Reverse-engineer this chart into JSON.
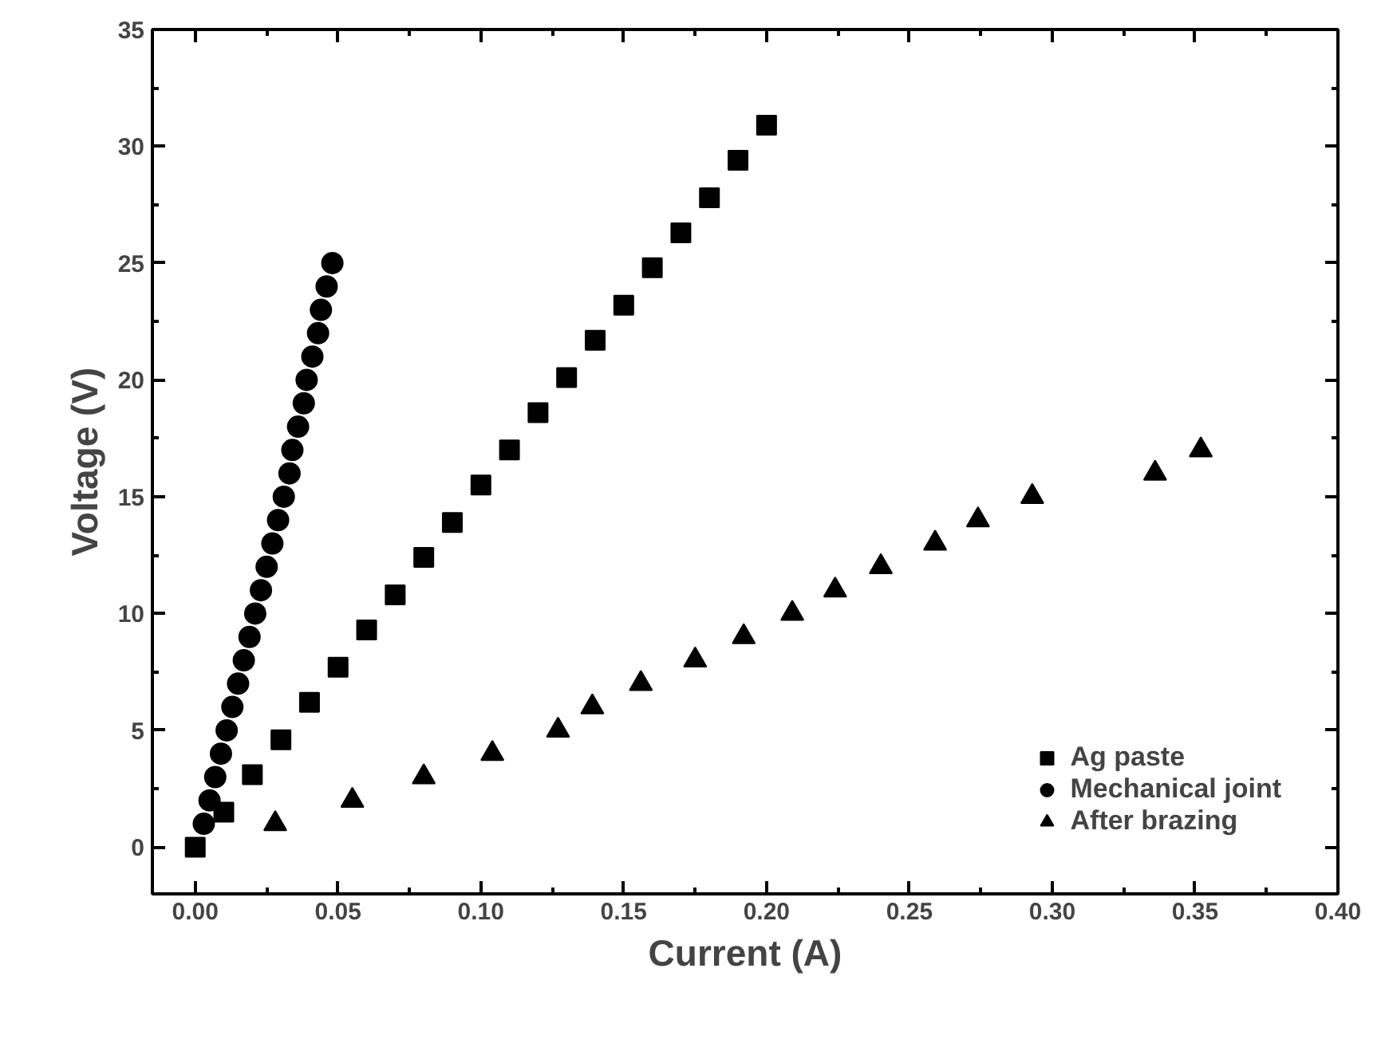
{
  "chart_data": {
    "type": "scatter",
    "xlabel": "Current (A)",
    "ylabel": "Voltage (V)",
    "xlim": [
      -0.015,
      0.4
    ],
    "ylim": [
      -2,
      35
    ],
    "xticks": [
      {
        "value": 0,
        "label": "0.00"
      },
      {
        "value": 0.05,
        "label": "0.05"
      },
      {
        "value": 0.1,
        "label": "0.10"
      },
      {
        "value": 0.15,
        "label": "0.15"
      },
      {
        "value": 0.2,
        "label": "0.20"
      },
      {
        "value": 0.25,
        "label": "0.25"
      },
      {
        "value": 0.3,
        "label": "0.30"
      },
      {
        "value": 0.35,
        "label": "0.35"
      },
      {
        "value": 0.4,
        "label": "0.40"
      }
    ],
    "yticks": [
      0,
      5,
      10,
      15,
      20,
      25,
      30,
      35
    ],
    "grid": false,
    "legend": "bottom right",
    "series": [
      {
        "name": "Ag paste",
        "color": "#000000",
        "marker": "square",
        "x": [
          0,
          0.01,
          0.02,
          0.03,
          0.04,
          0.05,
          0.06,
          0.07,
          0.08,
          0.09,
          0.1,
          0.11,
          0.12,
          0.13,
          0.14,
          0.15,
          0.16,
          0.17,
          0.18,
          0.19,
          0.2
        ],
        "values": [
          0,
          1.5,
          3.1,
          4.6,
          6.2,
          7.7,
          9.3,
          10.8,
          12.4,
          13.9,
          15.5,
          17.0,
          18.6,
          20.1,
          21.7,
          23.2,
          24.8,
          26.3,
          27.8,
          29.4,
          30.9
        ]
      },
      {
        "name": "Mechanical joint",
        "color": "#000000",
        "marker": "circle",
        "x": [
          0.003,
          0.005,
          0.007,
          0.009,
          0.011,
          0.013,
          0.015,
          0.017,
          0.019,
          0.021,
          0.023,
          0.025,
          0.027,
          0.029,
          0.031,
          0.033,
          0.034,
          0.036,
          0.038,
          0.039,
          0.041,
          0.043,
          0.044,
          0.046,
          0.048
        ],
        "values": [
          1,
          2,
          3,
          4,
          5,
          6,
          7,
          8,
          9,
          10,
          11,
          12,
          13,
          14,
          15,
          16,
          17,
          18,
          19,
          20,
          21,
          22,
          23,
          24,
          25
        ]
      },
      {
        "name": "After brazing",
        "color": "#000000",
        "marker": "triangle",
        "x": [
          0.028,
          0.055,
          0.08,
          0.104,
          0.127,
          0.139,
          0.156,
          0.175,
          0.192,
          0.209,
          0.224,
          0.24,
          0.259,
          0.274,
          0.293,
          0.336,
          0.352
        ],
        "values": [
          1,
          2,
          3,
          4,
          5,
          6,
          7,
          8,
          9,
          10,
          11,
          12,
          13,
          14,
          15,
          16,
          17
        ]
      }
    ]
  }
}
